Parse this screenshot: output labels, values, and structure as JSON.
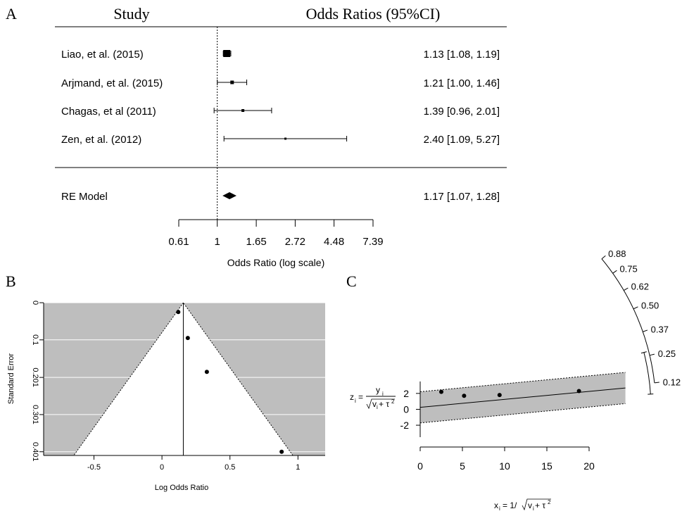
{
  "chart_data": [
    {
      "type": "forest",
      "panel_label": "A",
      "header_left": "Study",
      "header_right": "Odds Ratios (95%CI)",
      "studies": [
        {
          "name": "Liao, et al. (2015)",
          "or": 1.13,
          "lo": 1.08,
          "hi": 1.19,
          "label": "1.13 [1.08, 1.19]"
        },
        {
          "name": "Arjmand, et al. (2015)",
          "or": 1.21,
          "lo": 1.0,
          "hi": 1.46,
          "label": "1.21 [1.00, 1.46]"
        },
        {
          "name": "Chagas, et al (2011)",
          "or": 1.39,
          "lo": 0.96,
          "hi": 2.01,
          "label": "1.39 [0.96, 2.01]"
        },
        {
          "name": "Zen, et al. (2012)",
          "or": 2.4,
          "lo": 1.09,
          "hi": 5.27,
          "label": "2.40 [1.09, 5.27]"
        }
      ],
      "summary": {
        "name": "RE Model",
        "or": 1.17,
        "lo": 1.07,
        "hi": 1.28,
        "label": "1.17 [1.07, 1.28]"
      },
      "xticks": [
        0.61,
        1,
        1.65,
        2.72,
        4.48,
        7.39
      ],
      "xtick_labels": [
        "0.61",
        "1",
        "1.65",
        "2.72",
        "4.48",
        "7.39"
      ],
      "xlabel": "Odds Ratio (log scale)",
      "xscale": "log"
    },
    {
      "type": "funnel",
      "panel_label": "B",
      "points": [
        {
          "x": 0.12,
          "se": 0.025
        },
        {
          "x": 0.19,
          "se": 0.095
        },
        {
          "x": 0.33,
          "se": 0.186
        },
        {
          "x": 0.88,
          "se": 0.401
        }
      ],
      "center": 0.157,
      "xlim": [
        -0.87,
        1.2
      ],
      "ylim": [
        0,
        0.411
      ],
      "xticks": [
        -0.5,
        0,
        0.5,
        1
      ],
      "xtick_labels": [
        "-0.5",
        "0",
        "0.5",
        "1"
      ],
      "yticks": [
        0,
        0.1,
        0.201,
        0.301,
        0.401
      ],
      "ytick_labels": [
        "0",
        "0.1",
        "0.201",
        "0.301",
        "0.401"
      ],
      "xlabel": "Log Odds Ratio",
      "ylabel": "Standard Error",
      "background": "#bebebe"
    },
    {
      "type": "radial",
      "panel_label": "C",
      "points": [
        {
          "x": 2.5,
          "z": 2.2
        },
        {
          "x": 5.2,
          "z": 1.7
        },
        {
          "x": 9.4,
          "z": 1.8
        },
        {
          "x": 18.8,
          "z": 2.3
        }
      ],
      "fit_intercept": 0.25,
      "fit_slope": 0.1,
      "xlim": [
        0,
        24.3
      ],
      "ylim": [
        -3.5,
        3.5
      ],
      "xticks": [
        0,
        5,
        10,
        15,
        20
      ],
      "xtick_labels": [
        "0",
        "5",
        "10",
        "15",
        "20"
      ],
      "yticks": [
        -2,
        0,
        2
      ],
      "ytick_labels": [
        "-2",
        "0",
        "2"
      ],
      "arc_ticks": [
        0.88,
        0.75,
        0.62,
        0.5,
        0.37,
        0.25,
        0.12
      ],
      "arc_tick_labels": [
        "0.88",
        "0.75",
        "0.62",
        "0.50",
        "0.37",
        "0.25",
        "0.12"
      ],
      "arc_bracket_lo": 0.07,
      "arc_bracket_hi": 0.27,
      "ylabel_left": "z",
      "ylabel_sub": "i",
      "ylabel_eq": "=",
      "ylabel_num": "y",
      "ylabel_num_sub": "i",
      "ylabel_den": "v",
      "ylabel_den_sub": "i",
      "ylabel_den_rest": " + τ",
      "ylabel_den_sup": "2",
      "xlabel_left": "x",
      "xlabel_sub": "i",
      "xlabel_eq": "= 1/",
      "xlabel_den": "v",
      "xlabel_den_sub": "i",
      "xlabel_den_rest": " + τ",
      "xlabel_den_sup": "2",
      "band_color": "#bebebe"
    }
  ]
}
